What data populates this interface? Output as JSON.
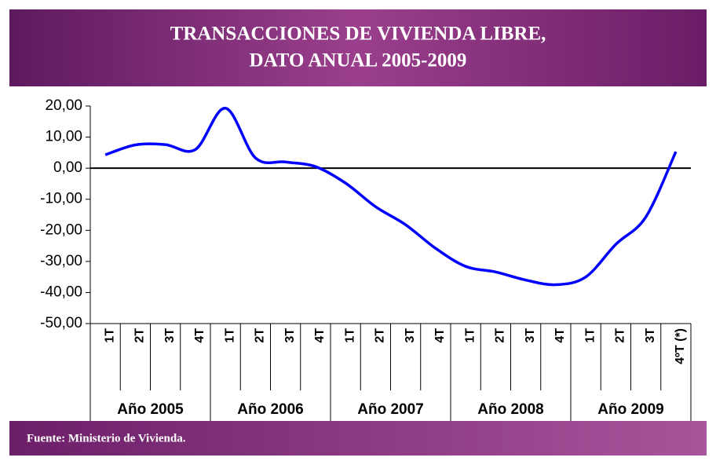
{
  "chart_data": {
    "type": "line",
    "title": [
      "TRANSACCIONES DE VIVIENDA LIBRE,",
      "DATO ANUAL 2005-2009"
    ],
    "categories": [
      "1T",
      "2T",
      "3T",
      "4T",
      "1T",
      "2T",
      "3T",
      "4T",
      "1T",
      "2T",
      "3T",
      "4T",
      "1T",
      "2T",
      "3T",
      "4T",
      "1T",
      "2T",
      "3T",
      "4ºT (*)"
    ],
    "groups": [
      "Año 2005",
      "Año 2006",
      "Año 2007",
      "Año 2008",
      "Año 2009"
    ],
    "values": [
      4.3,
      7.5,
      7.6,
      6.0,
      19.3,
      3.3,
      2.0,
      0.5,
      -4.8,
      -12.4,
      -18.2,
      -25.8,
      -31.6,
      -33.4,
      -36.0,
      -37.5,
      -35.0,
      -24.5,
      -15.7,
      5.3
    ],
    "color": "#0000ff",
    "ylim": [
      -50,
      20
    ],
    "yticks": [
      {
        "value": 20,
        "label": "20,00"
      },
      {
        "value": 10,
        "label": "10,00"
      },
      {
        "value": 0,
        "label": "0,00"
      },
      {
        "value": -10,
        "label": "-10,00"
      },
      {
        "value": -20,
        "label": "-20,00"
      },
      {
        "value": -30,
        "label": "-30,00"
      },
      {
        "value": -40,
        "label": "-40,00"
      },
      {
        "value": -50,
        "label": "-50,00"
      }
    ],
    "source": "Fuente: Ministerio de Vivienda."
  }
}
